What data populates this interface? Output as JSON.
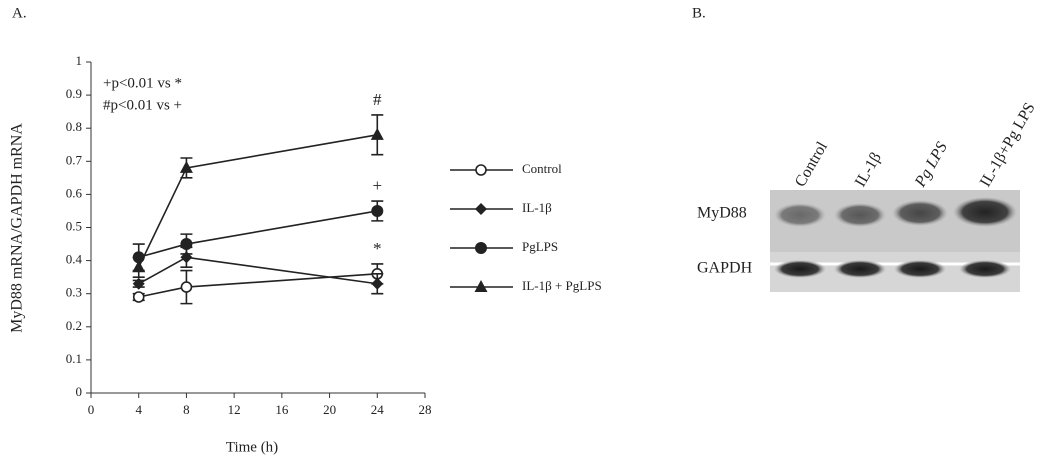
{
  "panel_labels": [
    "A.",
    "B."
  ],
  "chart_data": {
    "type": "line",
    "xlabel": "Time (h)",
    "ylabel": "MyD88 mRNA/GAPDH mRNA",
    "annotations": [
      "+p<0.01 vs *",
      "#p<0.01 vs +"
    ],
    "x": [
      4,
      8,
      24
    ],
    "xlim": [
      0,
      28
    ],
    "xticks": [
      0,
      4,
      8,
      12,
      16,
      20,
      24,
      28
    ],
    "ylim": [
      0,
      1
    ],
    "yticks": [
      0,
      0.1,
      0.2,
      0.3,
      0.4,
      0.5,
      0.6,
      0.7,
      0.8,
      0.9,
      1
    ],
    "series": [
      {
        "name": "Control",
        "color": "#222222",
        "marker": "circle-open",
        "values": [
          0.29,
          0.32,
          0.36
        ],
        "errors": [
          0.01,
          0.05,
          0.03
        ],
        "annotation": "*"
      },
      {
        "name": "IL-1β",
        "color": "#222222",
        "marker": "diamond",
        "values": [
          0.33,
          0.41,
          0.33
        ],
        "errors": [
          0.01,
          0.03,
          0.03
        ]
      },
      {
        "name": "PgLPS",
        "color": "#222222",
        "marker": "circle",
        "values": [
          0.41,
          0.45,
          0.55
        ],
        "errors": [
          0.04,
          0.03,
          0.03
        ],
        "annotation": "+"
      },
      {
        "name": "IL-1β + PgLPS",
        "color": "#222222",
        "marker": "triangle",
        "values": [
          0.38,
          0.68,
          0.78
        ],
        "errors": [
          0.03,
          0.03,
          0.06
        ],
        "annotation": "#"
      }
    ]
  },
  "blot": {
    "lanes": [
      "Control",
      "IL-1β",
      "Pg LPS",
      "IL-1β+Pg LPS"
    ],
    "rows": [
      "MyD88",
      "GAPDH"
    ]
  }
}
